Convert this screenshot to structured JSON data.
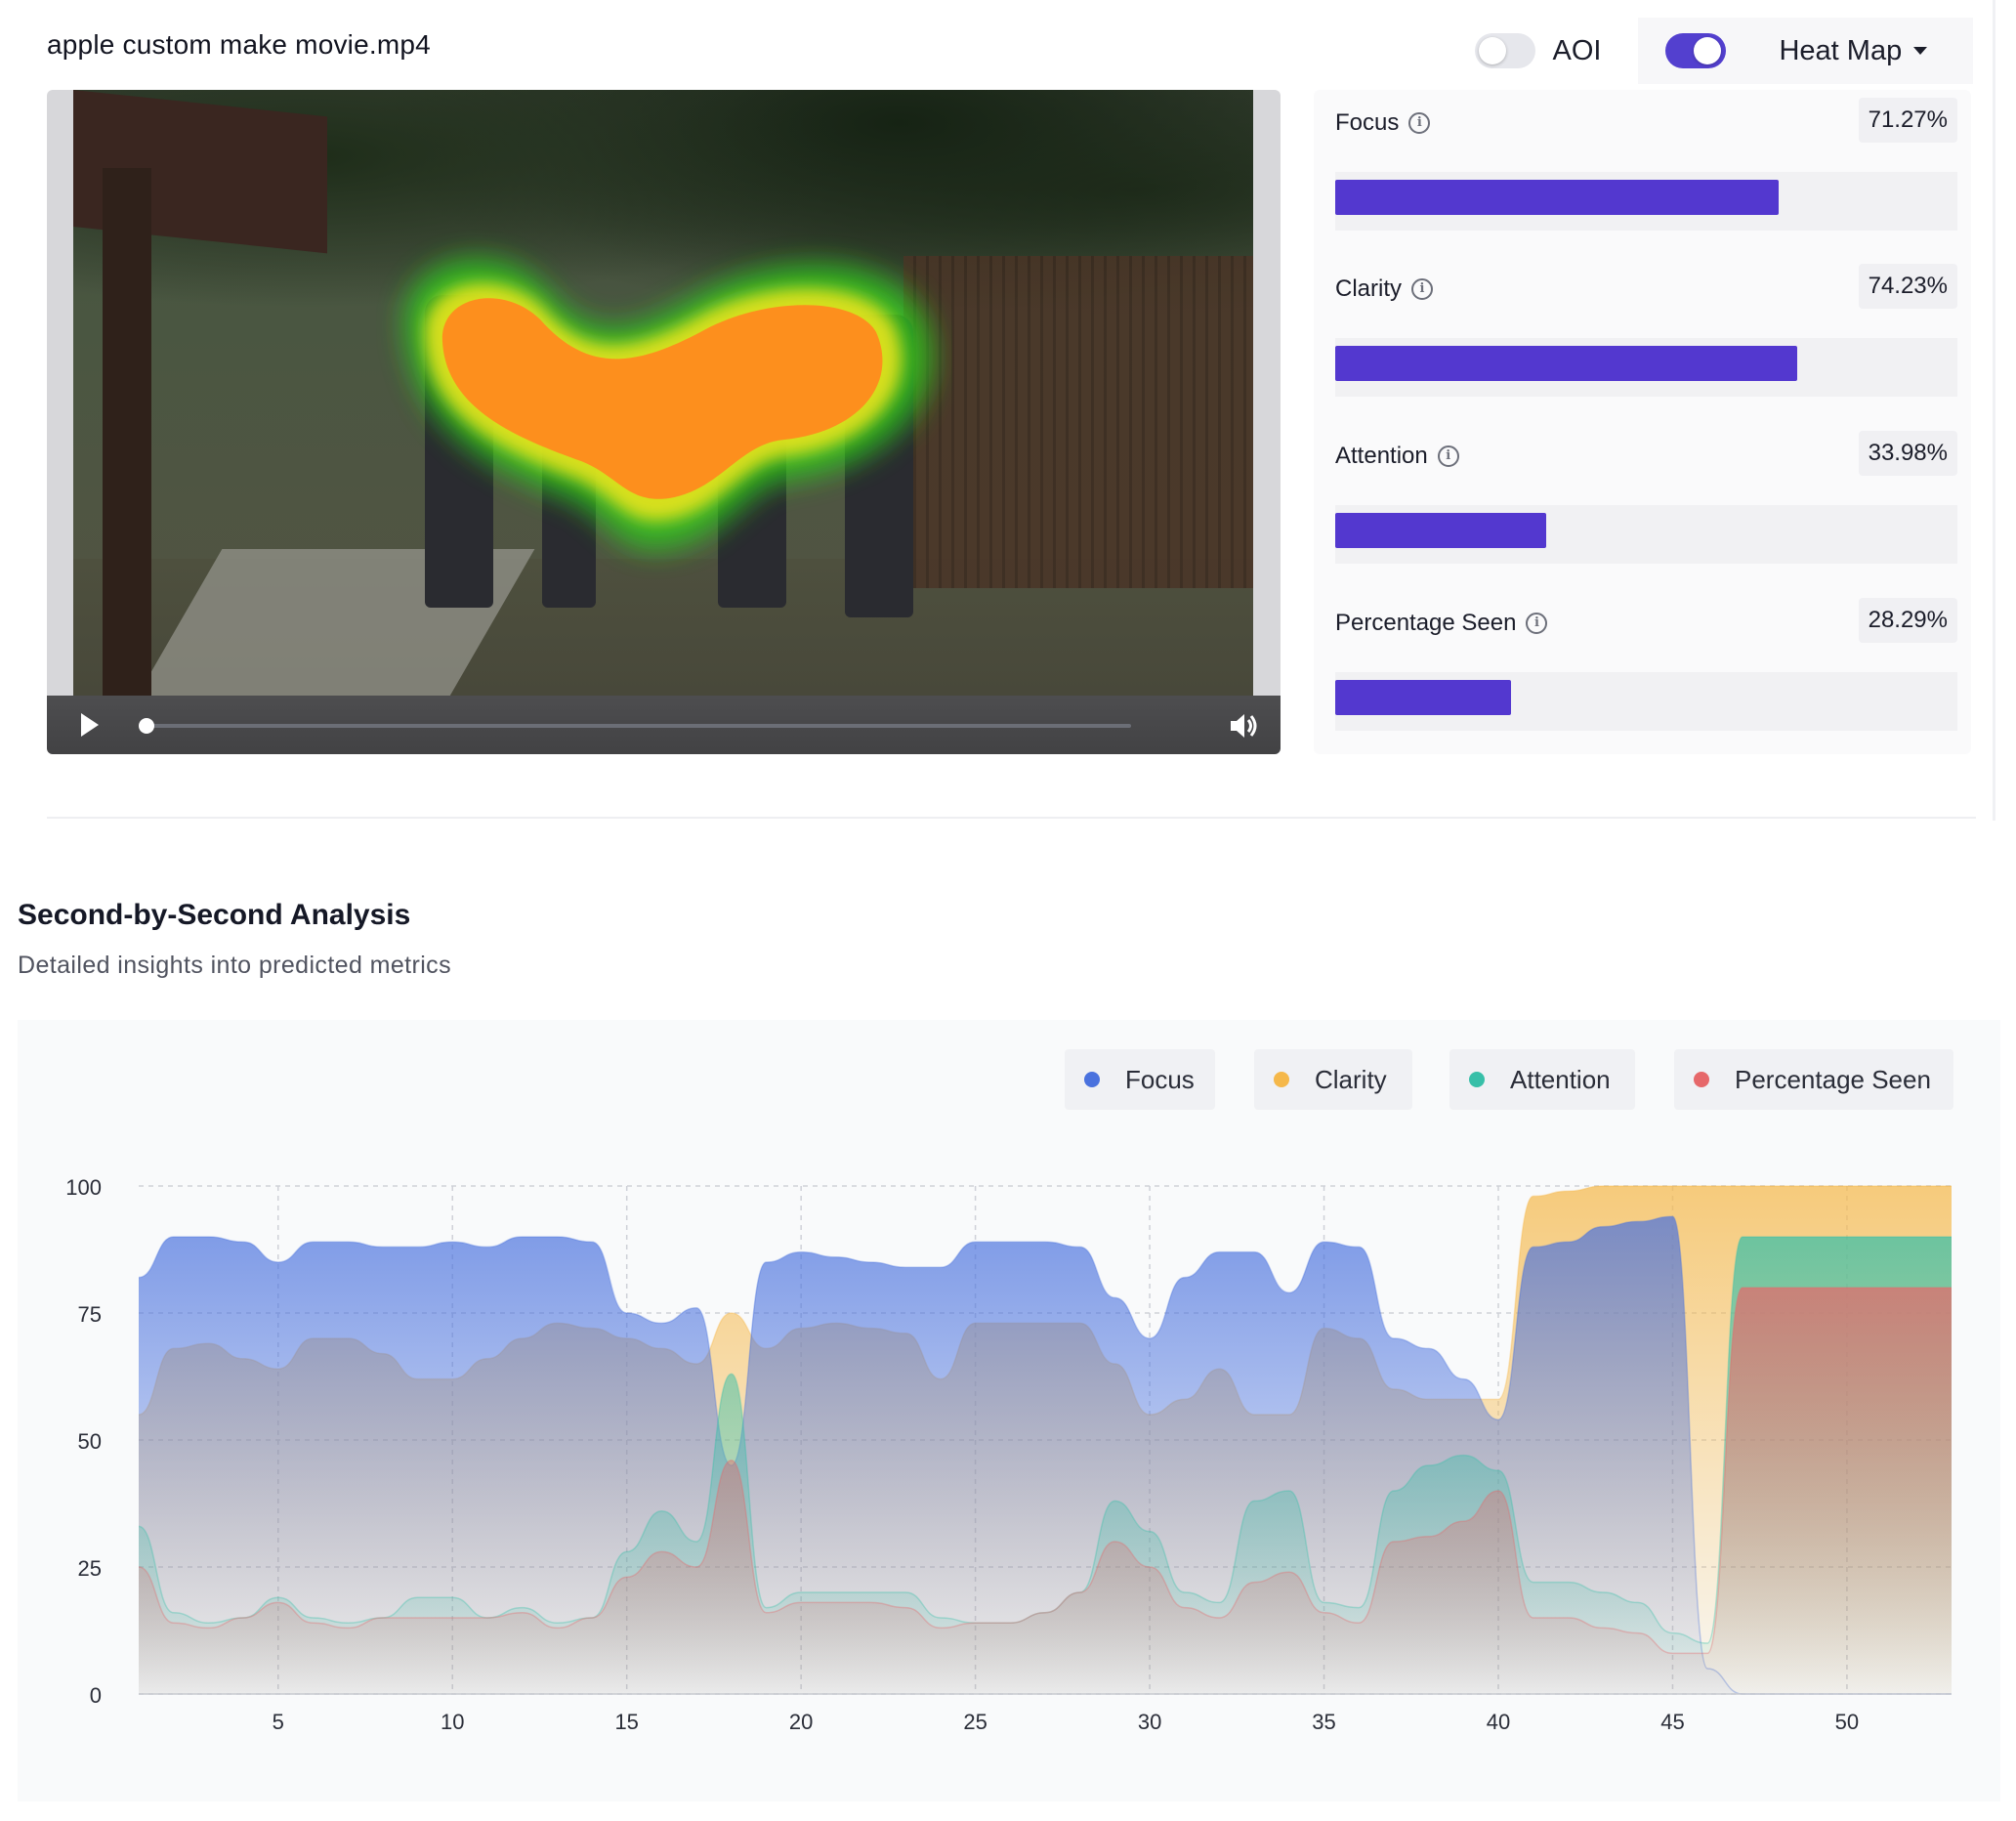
{
  "file": {
    "name": "apple custom make movie.mp4"
  },
  "controls": {
    "aoi_label": "AOI",
    "aoi_on": false,
    "heatmap_on": true,
    "view_select": "Heat Map"
  },
  "metrics": [
    {
      "label": "Focus",
      "value": "71.27%",
      "fraction": 0.7127
    },
    {
      "label": "Clarity",
      "value": "74.23%",
      "fraction": 0.7423
    },
    {
      "label": "Attention",
      "value": "33.98%",
      "fraction": 0.3398
    },
    {
      "label": "Percentage Seen",
      "value": "28.29%",
      "fraction": 0.2829
    }
  ],
  "analysis": {
    "title": "Second-by-Second Analysis",
    "subtitle": "Detailed insights into predicted metrics"
  },
  "colors": {
    "accent": "#5338CF",
    "focus": "#4A72DE",
    "clarity": "#F5B84A",
    "attention": "#37BFA8",
    "seen": "#E6686A"
  },
  "chart_data": {
    "type": "area",
    "title": "",
    "xlabel": "",
    "ylabel": "",
    "xlim": [
      1,
      53
    ],
    "ylim": [
      0,
      100
    ],
    "x_ticks": [
      5,
      10,
      15,
      20,
      25,
      30,
      35,
      40,
      45,
      50
    ],
    "y_ticks": [
      0,
      25,
      50,
      75,
      100
    ],
    "grid": true,
    "legend_position": "top-right",
    "x": [
      1,
      2,
      3,
      4,
      5,
      6,
      7,
      8,
      9,
      10,
      11,
      12,
      13,
      14,
      15,
      16,
      17,
      18,
      19,
      20,
      21,
      22,
      23,
      24,
      25,
      26,
      27,
      28,
      29,
      30,
      31,
      32,
      33,
      34,
      35,
      36,
      37,
      38,
      39,
      40,
      41,
      42,
      43,
      44,
      45,
      46,
      47,
      48,
      49,
      50,
      51,
      52,
      53
    ],
    "series": [
      {
        "name": "Focus",
        "color": "#4A72DE",
        "values": [
          82,
          90,
          90,
          89,
          85,
          89,
          89,
          88,
          88,
          89,
          88,
          90,
          90,
          89,
          75,
          73,
          76,
          45,
          85,
          87,
          86,
          85,
          84,
          84,
          89,
          89,
          89,
          88,
          78,
          70,
          82,
          87,
          87,
          79,
          89,
          88,
          70,
          68,
          62,
          54,
          88,
          89,
          92,
          93,
          94,
          5,
          0,
          0,
          0,
          0,
          0,
          0,
          0
        ]
      },
      {
        "name": "Clarity",
        "color": "#F5B84A",
        "values": [
          55,
          68,
          69,
          66,
          64,
          70,
          70,
          67,
          62,
          62,
          66,
          70,
          73,
          72,
          70,
          68,
          65,
          75,
          68,
          72,
          73,
          72,
          71,
          62,
          73,
          73,
          73,
          73,
          65,
          55,
          58,
          64,
          55,
          55,
          72,
          70,
          60,
          58,
          58,
          58,
          98,
          99,
          100,
          100,
          100,
          100,
          100,
          100,
          100,
          100,
          100,
          100,
          100
        ]
      },
      {
        "name": "Attention",
        "color": "#37BFA8",
        "values": [
          33,
          16,
          14,
          15,
          19,
          15,
          14,
          15,
          19,
          19,
          15,
          17,
          14,
          15,
          28,
          36,
          30,
          63,
          17,
          20,
          20,
          20,
          20,
          15,
          14,
          14,
          16,
          20,
          38,
          32,
          20,
          18,
          38,
          40,
          18,
          17,
          40,
          45,
          47,
          44,
          22,
          22,
          20,
          18,
          12,
          10,
          90,
          90,
          90,
          90,
          90,
          90,
          90
        ]
      },
      {
        "name": "Percentage Seen",
        "color": "#E6686A",
        "values": [
          25,
          14,
          13,
          15,
          18,
          14,
          13,
          15,
          15,
          15,
          15,
          16,
          13,
          15,
          23,
          28,
          25,
          46,
          16,
          18,
          18,
          18,
          17,
          13,
          14,
          14,
          16,
          20,
          30,
          25,
          17,
          15,
          22,
          24,
          16,
          14,
          30,
          31,
          34,
          40,
          15,
          15,
          13,
          12,
          8,
          8,
          80,
          80,
          80,
          80,
          80,
          80,
          80
        ]
      }
    ]
  }
}
